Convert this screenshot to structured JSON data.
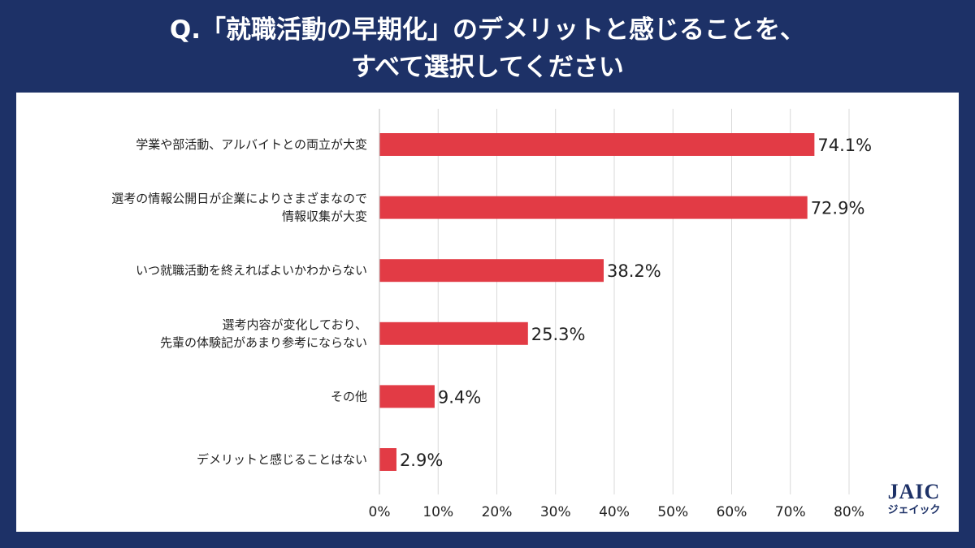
{
  "header": {
    "title_line1": "Q.「就職活動の早期化」のデメリットと感じることを、",
    "title_line2": "すべて選択してください"
  },
  "logo": {
    "main": "JAIC",
    "sub": "ジェイック"
  },
  "colors": {
    "background": "#1d3167",
    "bar": "#e23b45",
    "grid": "#d9d9d9",
    "text": "#222222"
  },
  "chart_data": {
    "type": "bar",
    "orientation": "horizontal",
    "title": "Q.「就職活動の早期化」のデメリットと感じることを、すべて選択してください",
    "xlabel": "",
    "ylabel": "",
    "xlim": [
      0,
      80
    ],
    "x_ticks": [
      0,
      10,
      20,
      30,
      40,
      50,
      60,
      70,
      80
    ],
    "x_tick_labels": [
      "0%",
      "10%",
      "20%",
      "30%",
      "40%",
      "50%",
      "60%",
      "70%",
      "80%"
    ],
    "grid": true,
    "categories": [
      [
        "学業や部活動、アルバイトとの両立が大変"
      ],
      [
        "選考の情報公開日が企業によりさまざまなので",
        "情報収集が大変"
      ],
      [
        "いつ就職活動を終えればよいかわからない"
      ],
      [
        "選考内容が変化しており、",
        "先輩の体験記があまり参考にならない"
      ],
      [
        "その他"
      ],
      [
        "デメリットと感じることはない"
      ]
    ],
    "values": [
      74.1,
      72.9,
      38.2,
      25.3,
      9.4,
      2.9
    ],
    "data_labels": [
      "74.1%",
      "72.9%",
      "38.2%",
      "25.3%",
      "9.4%",
      "2.9%"
    ]
  }
}
